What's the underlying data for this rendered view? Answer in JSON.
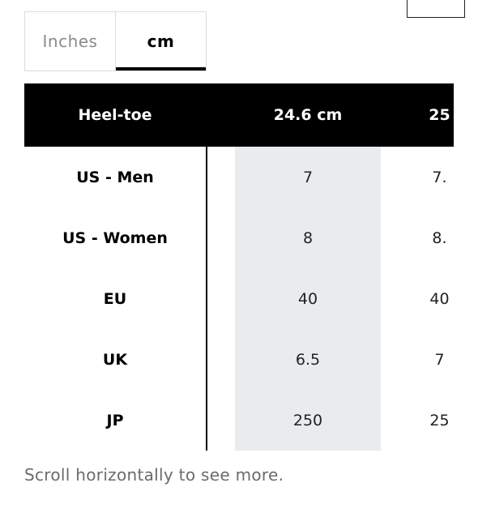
{
  "unit_toggle": {
    "options": [
      "Inches",
      "cm"
    ],
    "selected": "cm"
  },
  "size_table": {
    "header": {
      "label": "Heel-toe",
      "columns": [
        "24.6 cm",
        "25"
      ]
    },
    "rows": [
      {
        "label": "US - Men",
        "values": [
          "7",
          "7."
        ]
      },
      {
        "label": "US - Women",
        "values": [
          "8",
          "8."
        ]
      },
      {
        "label": "EU",
        "values": [
          "40",
          "40"
        ]
      },
      {
        "label": "UK",
        "values": [
          "6.5",
          "7"
        ]
      },
      {
        "label": "JP",
        "values": [
          "250",
          "25"
        ]
      }
    ]
  },
  "scroll_hint": "Scroll horizontally to see more.",
  "colors": {
    "header_bg": "#000000",
    "highlight_column": "#e9ecef",
    "muted_text": "#8a8a8a"
  }
}
